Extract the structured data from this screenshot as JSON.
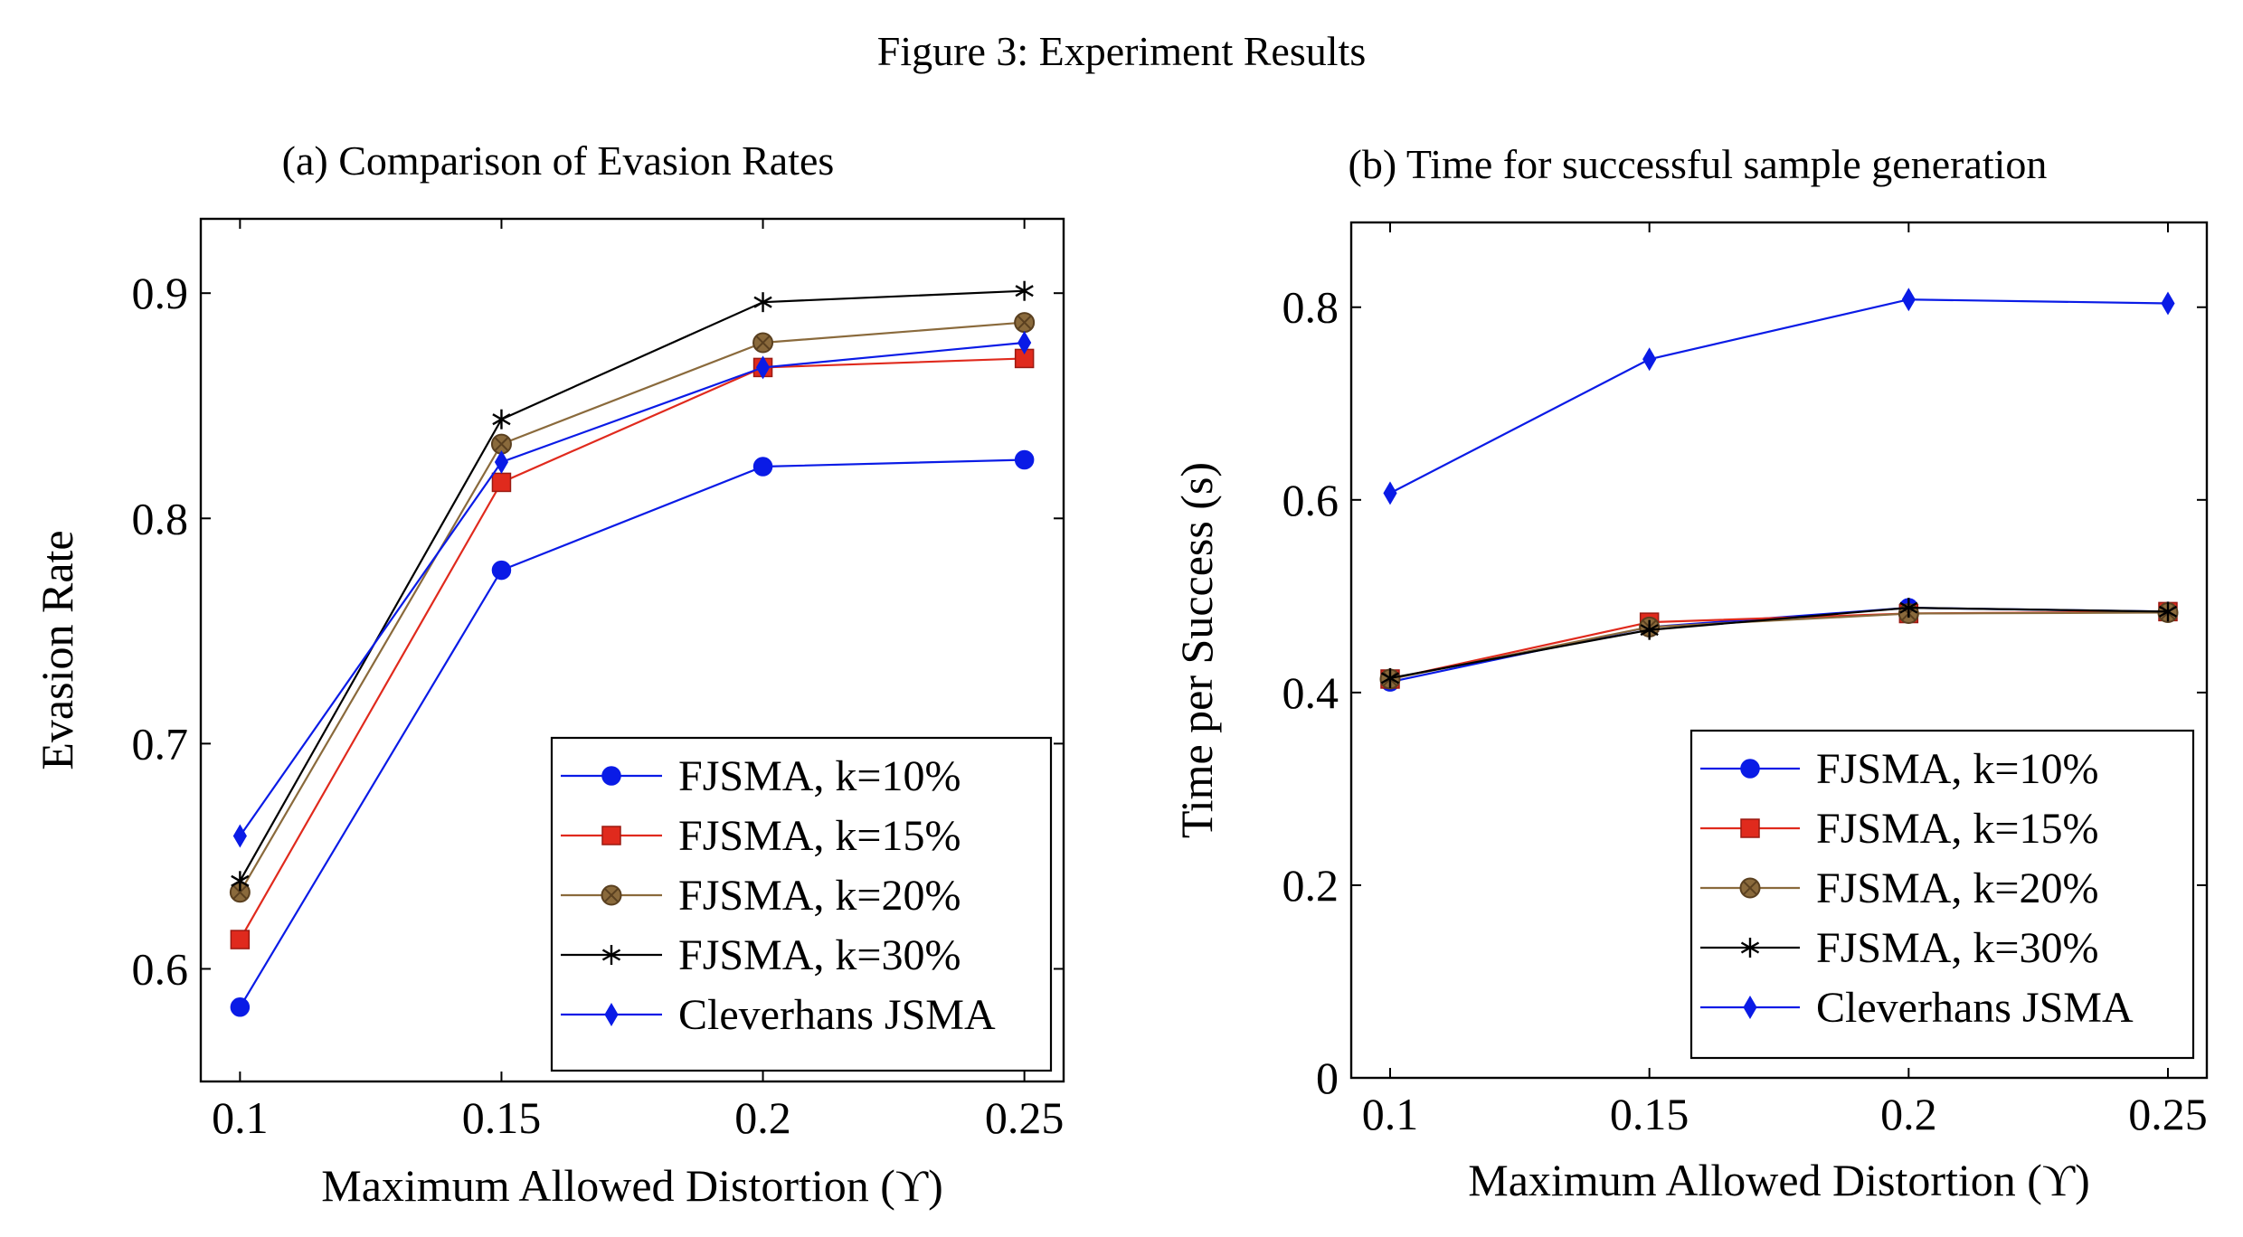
{
  "figure_title": "Figure 3: Experiment Results",
  "colors": {
    "fjsma10": "#0a1be6",
    "fjsma15": "#e02a1d",
    "fjsma20": "#8a6a3c",
    "fjsma20_edge": "#5a4020",
    "fjsma30": "#000000",
    "cleverhans": "#0a1be6"
  },
  "chart_data": [
    {
      "type": "line",
      "title": "(a) Comparison of Evasion Rates",
      "xlabel": "Maximum Allowed Distortion (ϒ)",
      "ylabel": "Evasion Rate",
      "x": [
        0.1,
        0.15,
        0.2,
        0.25
      ],
      "xticks": [
        0.1,
        0.15,
        0.2,
        0.25
      ],
      "xtick_labels": [
        "0.1",
        "0.15",
        "0.2",
        "0.25"
      ],
      "xlim": [
        0.0925,
        0.2575
      ],
      "ylim": [
        0.55,
        0.933
      ],
      "yticks": [
        0.6,
        0.7,
        0.8,
        0.9
      ],
      "ytick_labels": [
        "0.6",
        "0.7",
        "0.8",
        "0.9"
      ],
      "legend_position": "bottom-right",
      "grid": false,
      "series": [
        {
          "name": "FJSMA, k=10%",
          "marker": "circle",
          "color_key": "fjsma10",
          "values": [
            0.583,
            0.777,
            0.823,
            0.826
          ]
        },
        {
          "name": "FJSMA, k=15%",
          "marker": "square",
          "color_key": "fjsma15",
          "values": [
            0.613,
            0.816,
            0.867,
            0.871
          ]
        },
        {
          "name": "FJSMA, k=20%",
          "marker": "otimes",
          "color_key": "fjsma20",
          "values": [
            0.634,
            0.833,
            0.878,
            0.887
          ]
        },
        {
          "name": "FJSMA, k=30%",
          "marker": "star",
          "color_key": "fjsma30",
          "values": [
            0.639,
            0.844,
            0.896,
            0.901
          ]
        },
        {
          "name": "Cleverhans JSMA",
          "marker": "diamond",
          "color_key": "cleverhans",
          "values": [
            0.659,
            0.825,
            0.867,
            0.878
          ]
        }
      ]
    },
    {
      "type": "line",
      "title": "(b) Time for successful sample generation",
      "xlabel": "Maximum Allowed Distortion (ϒ)",
      "ylabel": "Time per Success (s)",
      "x": [
        0.1,
        0.15,
        0.2,
        0.25
      ],
      "xticks": [
        0.1,
        0.15,
        0.2,
        0.25
      ],
      "xtick_labels": [
        "0.1",
        "0.15",
        "0.2",
        "0.25"
      ],
      "xlim": [
        0.0925,
        0.2575
      ],
      "ylim": [
        0,
        0.888
      ],
      "yticks": [
        0,
        0.2,
        0.4,
        0.6,
        0.8
      ],
      "ytick_labels": [
        "0",
        "0.2",
        "0.4",
        "0.6",
        "0.8"
      ],
      "legend_position": "bottom-right",
      "grid": false,
      "series": [
        {
          "name": "FJSMA, k=10%",
          "marker": "circle",
          "color_key": "fjsma10",
          "values": [
            0.411,
            0.468,
            0.488,
            0.484
          ]
        },
        {
          "name": "FJSMA, k=15%",
          "marker": "square",
          "color_key": "fjsma15",
          "values": [
            0.414,
            0.473,
            0.482,
            0.484
          ]
        },
        {
          "name": "FJSMA, k=20%",
          "marker": "otimes",
          "color_key": "fjsma20",
          "values": [
            0.414,
            0.468,
            0.482,
            0.483
          ]
        },
        {
          "name": "FJSMA, k=30%",
          "marker": "star",
          "color_key": "fjsma30",
          "values": [
            0.415,
            0.465,
            0.488,
            0.484
          ]
        },
        {
          "name": "Cleverhans JSMA",
          "marker": "diamond",
          "color_key": "cleverhans",
          "values": [
            0.607,
            0.746,
            0.808,
            0.804
          ]
        }
      ]
    }
  ]
}
